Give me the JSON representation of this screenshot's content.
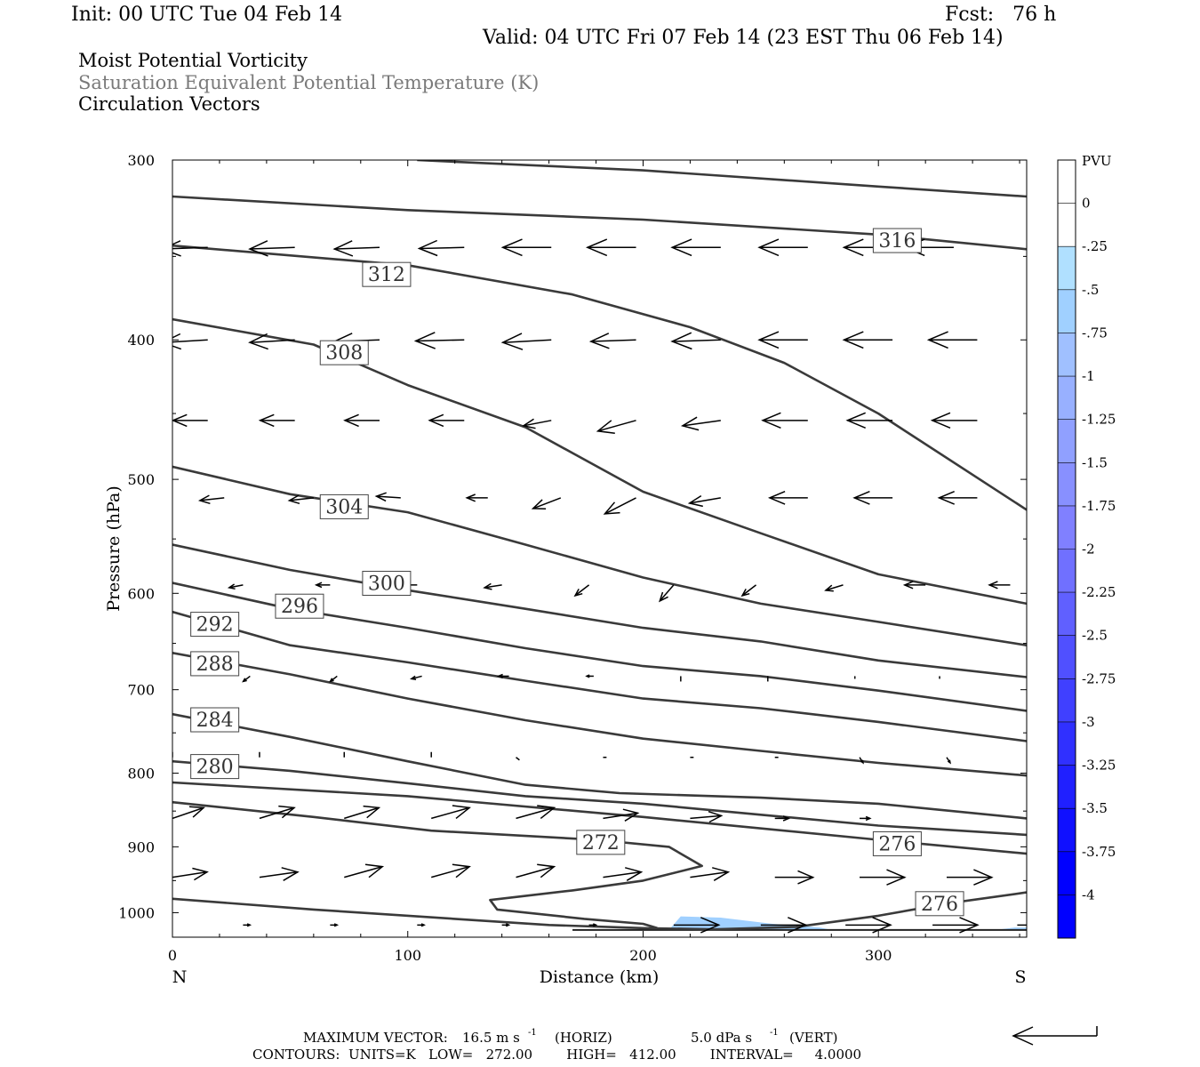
{
  "header": {
    "init": "Init: 00 UTC Tue 04 Feb 14",
    "fcst": "Fcst:   76 h",
    "valid": "Valid: 04 UTC Fri 07 Feb 14 (23 EST Thu 06 Feb 14)"
  },
  "fields": [
    "Moist Potential Vorticity",
    "Saturation Equivalent Potential Temperature (K)",
    "Circulation Vectors"
  ],
  "chart_data": {
    "type": "cross-section",
    "xlabel": "Distance (km)",
    "ylabel": "Pressure (hPa)",
    "xlim": [
      0,
      363
    ],
    "ylim": [
      300,
      1040
    ],
    "y_log": true,
    "x_ticks": [
      0,
      100,
      200,
      300
    ],
    "y_ticks": [
      300,
      400,
      500,
      600,
      700,
      800,
      900,
      1000
    ],
    "end_labels": {
      "left": "N",
      "right": "S"
    },
    "colorbar": {
      "title": "PVU",
      "labels": [
        "0",
        "-.25",
        "-.5",
        "-.75",
        "-1",
        "-1.25",
        "-1.5",
        "-1.75",
        "-2",
        "-2.25",
        "-2.5",
        "-2.75",
        "-3",
        "-3.25",
        "-3.5",
        "-3.75",
        "-4"
      ],
      "colors": [
        "#ffffff",
        "#ffffff",
        "#b0e0ff",
        "#a0d0ff",
        "#a0c0ff",
        "#98b0ff",
        "#90a0ff",
        "#8890ff",
        "#8080ff",
        "#7070ff",
        "#6060ff",
        "#5050ff",
        "#4040ff",
        "#3030ff",
        "#2020ff",
        "#1010ff",
        "#0000ff",
        "#0000ff"
      ]
    },
    "isentropes": [
      {
        "label": "",
        "points": [
          [
            104,
            300
          ],
          [
            200,
            305
          ],
          [
            300,
            313
          ],
          [
            363,
            318
          ]
        ]
      },
      {
        "label": "316",
        "label_at": [
          308,
          341
        ],
        "points": [
          [
            0,
            318
          ],
          [
            100,
            325
          ],
          [
            200,
            330
          ],
          [
            300,
            338
          ],
          [
            363,
            346
          ]
        ]
      },
      {
        "label": "312",
        "label_at": [
          91,
          360
        ],
        "points": [
          [
            0,
            344
          ],
          [
            100,
            355
          ],
          [
            170,
            372
          ],
          [
            220,
            392
          ],
          [
            260,
            415
          ],
          [
            300,
            450
          ],
          [
            363,
            525
          ]
        ]
      },
      {
        "label": "308",
        "label_at": [
          73,
          408
        ],
        "points": [
          [
            0,
            387
          ],
          [
            60,
            403
          ],
          [
            100,
            430
          ],
          [
            150,
            460
          ],
          [
            200,
            510
          ],
          [
            250,
            545
          ],
          [
            300,
            582
          ],
          [
            363,
            610
          ]
        ]
      },
      {
        "label": "304",
        "label_at": [
          73,
          522
        ],
        "points": [
          [
            0,
            490
          ],
          [
            50,
            512
          ],
          [
            100,
            527
          ],
          [
            150,
            555
          ],
          [
            200,
            585
          ],
          [
            250,
            610
          ],
          [
            300,
            628
          ],
          [
            363,
            652
          ]
        ]
      },
      {
        "label": "300",
        "label_at": [
          91,
          590
        ],
        "points": [
          [
            0,
            555
          ],
          [
            50,
            578
          ],
          [
            100,
            597
          ],
          [
            150,
            615
          ],
          [
            200,
            634
          ],
          [
            250,
            648
          ],
          [
            300,
            668
          ],
          [
            363,
            686
          ]
        ]
      },
      {
        "label": "296",
        "label_at": [
          54,
          612
        ],
        "points": [
          [
            0,
            590
          ],
          [
            50,
            615
          ],
          [
            100,
            634
          ],
          [
            150,
            655
          ],
          [
            200,
            674
          ],
          [
            250,
            685
          ],
          [
            300,
            701
          ],
          [
            363,
            724
          ]
        ]
      },
      {
        "label": "292",
        "label_at": [
          18,
          630
        ],
        "points": [
          [
            0,
            618
          ],
          [
            50,
            652
          ],
          [
            100,
            670
          ],
          [
            150,
            690
          ],
          [
            200,
            710
          ],
          [
            250,
            721
          ],
          [
            300,
            737
          ],
          [
            363,
            760
          ]
        ]
      },
      {
        "label": "288",
        "label_at": [
          18,
          671
        ],
        "points": [
          [
            0,
            660
          ],
          [
            50,
            683
          ],
          [
            100,
            710
          ],
          [
            150,
            735
          ],
          [
            200,
            757
          ],
          [
            250,
            772
          ],
          [
            300,
            787
          ],
          [
            363,
            803
          ]
        ]
      },
      {
        "label": "284",
        "label_at": [
          18,
          734
        ],
        "points": [
          [
            0,
            728
          ],
          [
            50,
            755
          ],
          [
            100,
            785
          ],
          [
            150,
            815
          ],
          [
            190,
            826
          ],
          [
            250,
            832
          ],
          [
            300,
            840
          ],
          [
            363,
            860
          ]
        ]
      },
      {
        "label": "280",
        "label_at": [
          18,
          791
        ],
        "points": [
          [
            0,
            785
          ],
          [
            50,
            797
          ],
          [
            100,
            813
          ],
          [
            150,
            830
          ],
          [
            200,
            840
          ],
          [
            250,
            855
          ],
          [
            300,
            870
          ],
          [
            363,
            883
          ]
        ]
      },
      {
        "label": "276",
        "label_at": [
          308,
          895
        ],
        "points": [
          [
            0,
            812
          ],
          [
            100,
            830
          ],
          [
            200,
            858
          ],
          [
            300,
            890
          ],
          [
            363,
            910
          ]
        ]
      },
      {
        "label": "272",
        "label_at": [
          182,
          893
        ],
        "points": [
          [
            0,
            838
          ],
          [
            60,
            858
          ],
          [
            110,
            877
          ],
          [
            180,
            890
          ],
          [
            211,
            900
          ],
          [
            225,
            928
          ],
          [
            200,
            950
          ],
          [
            170,
            965
          ],
          [
            135,
            980
          ],
          [
            138,
            995
          ],
          [
            175,
            1010
          ],
          [
            200,
            1018
          ],
          [
            206,
            1025
          ]
        ]
      },
      {
        "label": "276",
        "label_at": [
          326,
          985
        ],
        "points": [
          [
            0,
            978
          ],
          [
            60,
            995
          ],
          [
            120,
            1010
          ],
          [
            160,
            1020
          ],
          [
            200,
            1025
          ],
          [
            230,
            1027
          ],
          [
            265,
            1023
          ],
          [
            300,
            1005
          ],
          [
            330,
            985
          ],
          [
            363,
            968
          ]
        ]
      }
    ],
    "pv_shading": [
      {
        "level": "-.5",
        "points": [
          [
            211,
            1028
          ],
          [
            216,
            1006
          ],
          [
            233,
            1008
          ],
          [
            255,
            1018
          ],
          [
            275,
            1024
          ],
          [
            280,
            1028
          ]
        ]
      },
      {
        "level": "-.5",
        "points": [
          [
            350,
            1028
          ],
          [
            358,
            1024
          ],
          [
            363,
            1024
          ],
          [
            363,
            1028
          ]
        ]
      }
    ],
    "ground_pressure": 1028,
    "vector_rows": [
      {
        "p": 345,
        "x": [
          15,
          52,
          88,
          124,
          161,
          197,
          233,
          270,
          306,
          332
        ],
        "u": [
          -13,
          -13,
          -13,
          -13,
          -14,
          -14,
          -14,
          -14,
          -14,
          -14
        ],
        "w": [
          0.3,
          0.3,
          0.3,
          0.2,
          0,
          0,
          0,
          0,
          0,
          0
        ]
      },
      {
        "p": 400,
        "x": [
          15,
          52,
          88,
          124,
          161,
          197,
          233,
          270,
          306,
          342
        ],
        "u": [
          -13,
          -13,
          -13,
          -14,
          -14,
          -13,
          -14,
          -14,
          -14,
          -14
        ],
        "w": [
          0.5,
          0.5,
          0.3,
          0.2,
          0.5,
          0.3,
          0.3,
          0,
          0,
          0
        ]
      },
      {
        "p": 455,
        "x": [
          15,
          52,
          88,
          124,
          161,
          197,
          233,
          270,
          306,
          342
        ],
        "u": [
          -10,
          -10,
          -10,
          -10,
          -8,
          -11,
          -11,
          -13,
          -13,
          -13
        ],
        "w": [
          0,
          0,
          0,
          0,
          1,
          2,
          1,
          0,
          0,
          0
        ]
      },
      {
        "p": 515,
        "x": [
          22,
          60,
          97,
          134,
          165,
          197,
          233,
          270,
          306,
          342
        ],
        "u": [
          -7,
          -7,
          -7,
          -6,
          -8,
          -9,
          -9,
          -11,
          -11,
          -11
        ],
        "w": [
          0.5,
          0.5,
          -0.3,
          0,
          2,
          3,
          1,
          0,
          0,
          0
        ]
      },
      {
        "p": 592,
        "x": [
          30,
          67,
          104,
          140,
          177,
          213,
          248,
          285,
          320,
          356
        ],
        "u": [
          -4,
          -4,
          -4,
          -5,
          -4,
          -4,
          -4,
          -5,
          -6,
          -6
        ],
        "w": [
          0.5,
          0,
          0,
          0.5,
          2,
          3,
          2,
          1,
          0,
          0
        ]
      },
      {
        "p": 685,
        "x": [
          33,
          70,
          106,
          143,
          179,
          216,
          253,
          290,
          326,
          363
        ],
        "u": [
          -2,
          -2,
          -3,
          -3,
          -2,
          0,
          0,
          0,
          0,
          0
        ],
        "w": [
          1,
          1,
          0.5,
          0,
          0,
          1,
          1,
          0.5,
          0.5,
          0
        ]
      },
      {
        "p": 780,
        "x": [
          0,
          37,
          73,
          110,
          146,
          183,
          220,
          256,
          292,
          329
        ],
        "u": [
          0,
          0,
          0,
          0,
          1,
          1,
          1,
          1,
          1,
          1
        ],
        "w": [
          -1,
          -1,
          -1,
          -1,
          0.5,
          0,
          0,
          0,
          1,
          1
        ]
      },
      {
        "p": 860,
        "x": [
          0,
          37,
          73,
          110,
          146,
          183,
          220,
          256,
          292,
          329
        ],
        "u": [
          9,
          10,
          10,
          11,
          11,
          10,
          9,
          4,
          3,
          0
        ],
        "w": [
          -2,
          -2,
          -2,
          -2,
          -2,
          -1,
          -0.5,
          0,
          0,
          0
        ]
      },
      {
        "p": 945,
        "x": [
          0,
          37,
          73,
          110,
          146,
          183,
          220,
          256,
          292,
          329
        ],
        "u": [
          10,
          11,
          11,
          11,
          11,
          11,
          11,
          11,
          13,
          13
        ],
        "w": [
          -1,
          -1,
          -2,
          -2,
          -2,
          -1,
          -1,
          0,
          0,
          0
        ]
      },
      {
        "p": 1020,
        "x": [
          30,
          67,
          104,
          140,
          177,
          213,
          250,
          286,
          323,
          359
        ],
        "u": [
          2,
          2,
          2,
          2,
          2,
          13,
          13,
          13,
          13,
          13
        ],
        "w": [
          0,
          0,
          0,
          0,
          0,
          0,
          0,
          0,
          0,
          0
        ]
      }
    ]
  },
  "footer": {
    "max_vector_label": "MAXIMUM VECTOR:",
    "max_vector_horiz": "16.5 m s",
    "horiz_unit": "(HORIZ)",
    "max_vector_vert": "5.0 dPa s",
    "vert_unit": "(VERT)",
    "exponent": "-1",
    "contours": "CONTOURS:  UNITS=K   LOW=   272.00        HIGH=   412.00        INTERVAL=     4.0000"
  }
}
